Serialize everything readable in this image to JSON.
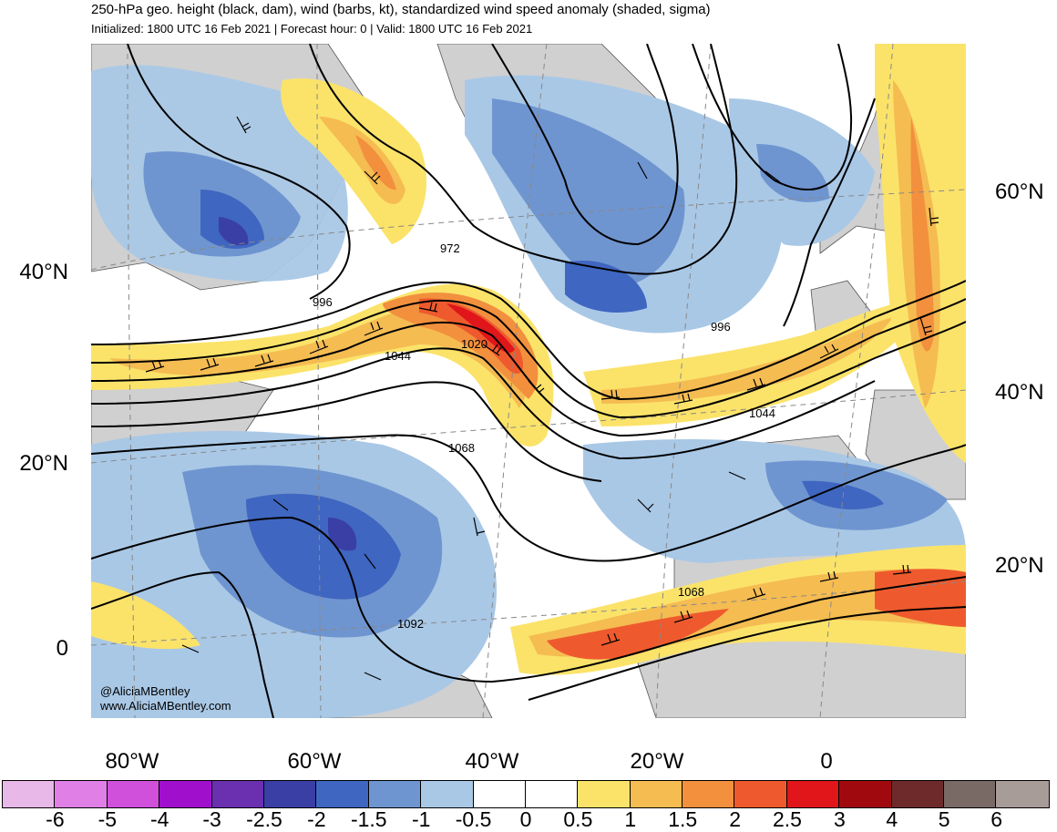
{
  "header": {
    "title": "250-hPa geo. height (black, dam), wind (barbs, kt), standardized wind speed anomaly (shaded, sigma)",
    "subtitle": "Initialized: 1800 UTC 16 Feb 2021 | Forecast hour: 0 | Valid: 1800 UTC 16 Feb 2021"
  },
  "map": {
    "lat_labels_left": [
      "40°N",
      "20°N",
      "0"
    ],
    "lat_labels_right": [
      "60°N",
      "40°N",
      "20°N"
    ],
    "lon_labels": [
      "80°W",
      "60°W",
      "40°W",
      "20°W",
      "0"
    ],
    "height_labels": [
      "972",
      "996",
      "1044",
      "1020",
      "996",
      "1044",
      "1068",
      "1068",
      "1092"
    ],
    "credit": [
      "@AliciaMBentley",
      "www.AliciaMBentley.com"
    ]
  },
  "colorbar": {
    "labels": [
      "-6",
      "-5",
      "-4",
      "-3",
      "-2.5",
      "-2",
      "-1.5",
      "-1",
      "-0.5",
      "0",
      "0.5",
      "1",
      "1.5",
      "2",
      "2.5",
      "3",
      "4",
      "5",
      "6"
    ],
    "colors": [
      "#e8b8e8",
      "#e080e6",
      "#d050dc",
      "#a010cc",
      "#6a30b0",
      "#3a3fa6",
      "#3f66c0",
      "#6f95d0",
      "#a9c8e6",
      "#ffffff",
      "#ffffff",
      "#fbe36a",
      "#f5bc52",
      "#f2903e",
      "#ee5a2e",
      "#e0161a",
      "#a00a0e",
      "#6e2a2a",
      "#7a6a66",
      "#a89c98"
    ]
  }
}
